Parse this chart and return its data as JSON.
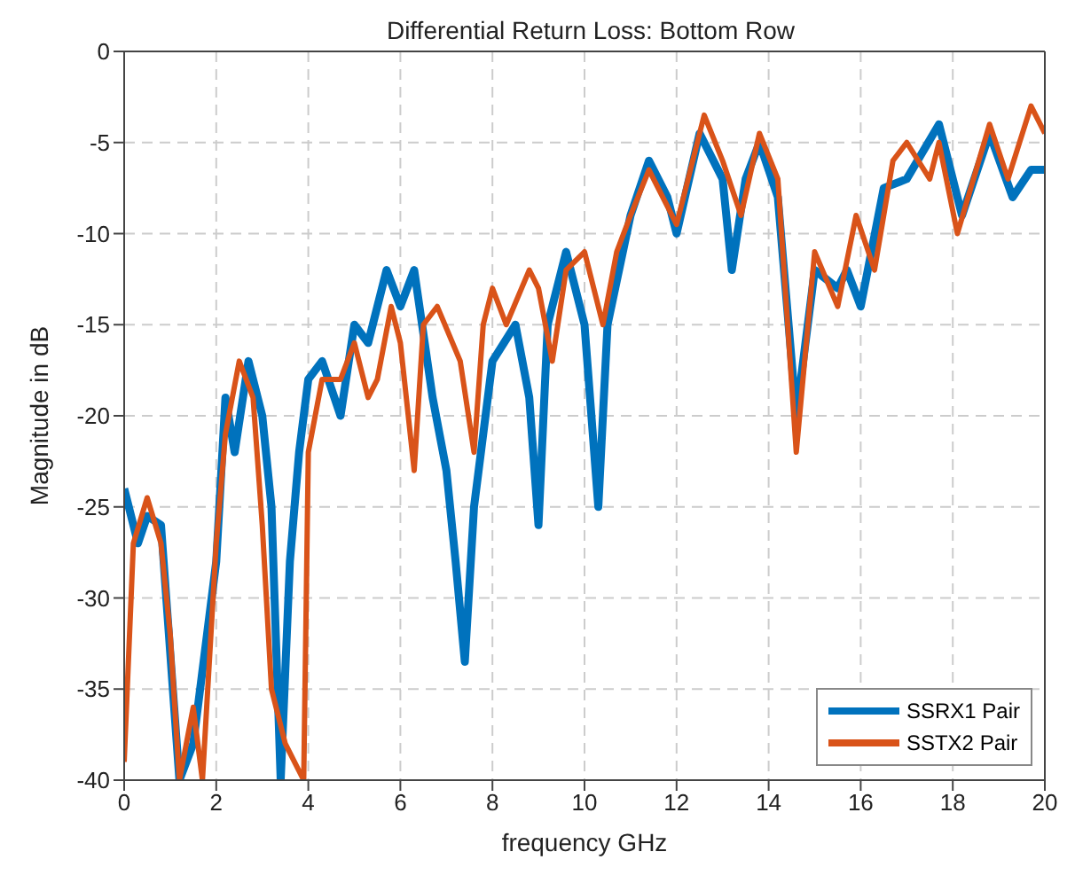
{
  "chart_data": {
    "type": "line",
    "title": "Differential Return Loss: Bottom Row",
    "xlabel": "frequency GHz",
    "ylabel": "Magnitude in dB",
    "xlim": [
      0,
      20
    ],
    "xticks": [
      0,
      2,
      4,
      6,
      8,
      10,
      12,
      14,
      16,
      18,
      20
    ],
    "ylim": [
      -40,
      0
    ],
    "yticks": [
      -40,
      -35,
      -30,
      -25,
      -20,
      -15,
      -10,
      -5,
      0
    ],
    "grid": true,
    "legend": "bottom right",
    "marker": "none",
    "line_style": "solid",
    "series": [
      {
        "name": "SSRX1 Pair",
        "color": "#0072bd",
        "x": [
          0,
          0.3,
          0.5,
          0.8,
          1.0,
          1.2,
          1.5,
          1.8,
          2.0,
          2.2,
          2.4,
          2.7,
          3.0,
          3.2,
          3.4,
          3.6,
          3.8,
          4.0,
          4.3,
          4.7,
          5.0,
          5.3,
          5.7,
          6.0,
          6.3,
          6.7,
          7.0,
          7.2,
          7.4,
          7.6,
          8.0,
          8.5,
          8.8,
          9.0,
          9.2,
          9.6,
          10.0,
          10.3,
          10.5,
          11.0,
          11.4,
          11.8,
          12.0,
          12.5,
          13.0,
          13.2,
          13.5,
          13.8,
          14.2,
          14.6,
          15.0,
          15.5,
          15.7,
          16.0,
          16.5,
          17.0,
          17.7,
          18.2,
          18.8,
          19.3,
          19.7,
          20
        ],
        "values": [
          -24,
          -27,
          -25.5,
          -26,
          -33,
          -40,
          -38,
          -32,
          -28,
          -19,
          -22,
          -17,
          -20,
          -25,
          -40,
          -28,
          -22,
          -18,
          -17,
          -20,
          -15,
          -16,
          -12,
          -14,
          -12,
          -19,
          -23,
          -28,
          -33.5,
          -25,
          -17,
          -15,
          -19,
          -26,
          -15,
          -11,
          -15,
          -25,
          -15,
          -9,
          -6,
          -8,
          -10,
          -4.5,
          -7,
          -12,
          -7,
          -5,
          -8,
          -20,
          -12,
          -13,
          -12,
          -14,
          -7.5,
          -7,
          -4,
          -9,
          -4.5,
          -8,
          -6.5,
          -6.5
        ]
      },
      {
        "name": "SSTX2 Pair",
        "color": "#d95319",
        "x": [
          0,
          0.2,
          0.5,
          0.8,
          1.0,
          1.2,
          1.5,
          1.7,
          2.0,
          2.2,
          2.5,
          2.8,
          3.0,
          3.2,
          3.5,
          3.9,
          4.0,
          4.3,
          4.7,
          5.0,
          5.3,
          5.5,
          5.8,
          6.0,
          6.3,
          6.5,
          6.8,
          7.3,
          7.6,
          7.8,
          8.0,
          8.3,
          8.8,
          9.0,
          9.3,
          9.6,
          10.0,
          10.4,
          10.7,
          11.0,
          11.4,
          11.8,
          12.0,
          12.6,
          13.0,
          13.4,
          13.8,
          14.2,
          14.6,
          15.0,
          15.5,
          15.9,
          16.3,
          16.7,
          17.0,
          17.5,
          17.7,
          18.1,
          18.8,
          19.2,
          19.7,
          20
        ],
        "values": [
          -39,
          -27,
          -24.5,
          -27,
          -32,
          -40,
          -36,
          -40,
          -27,
          -21,
          -17,
          -19,
          -26,
          -35,
          -38,
          -40,
          -22,
          -18,
          -18,
          -16,
          -19,
          -18,
          -14,
          -16,
          -23,
          -15,
          -14,
          -17,
          -22,
          -15,
          -13,
          -15,
          -12,
          -13,
          -17,
          -12,
          -11,
          -15,
          -11,
          -9,
          -6.5,
          -8.5,
          -9.5,
          -3.5,
          -6,
          -9,
          -4.5,
          -7,
          -22,
          -11,
          -14,
          -9,
          -12,
          -6,
          -5,
          -7,
          -5,
          -10,
          -4,
          -7,
          -3,
          -4.5
        ]
      }
    ]
  }
}
